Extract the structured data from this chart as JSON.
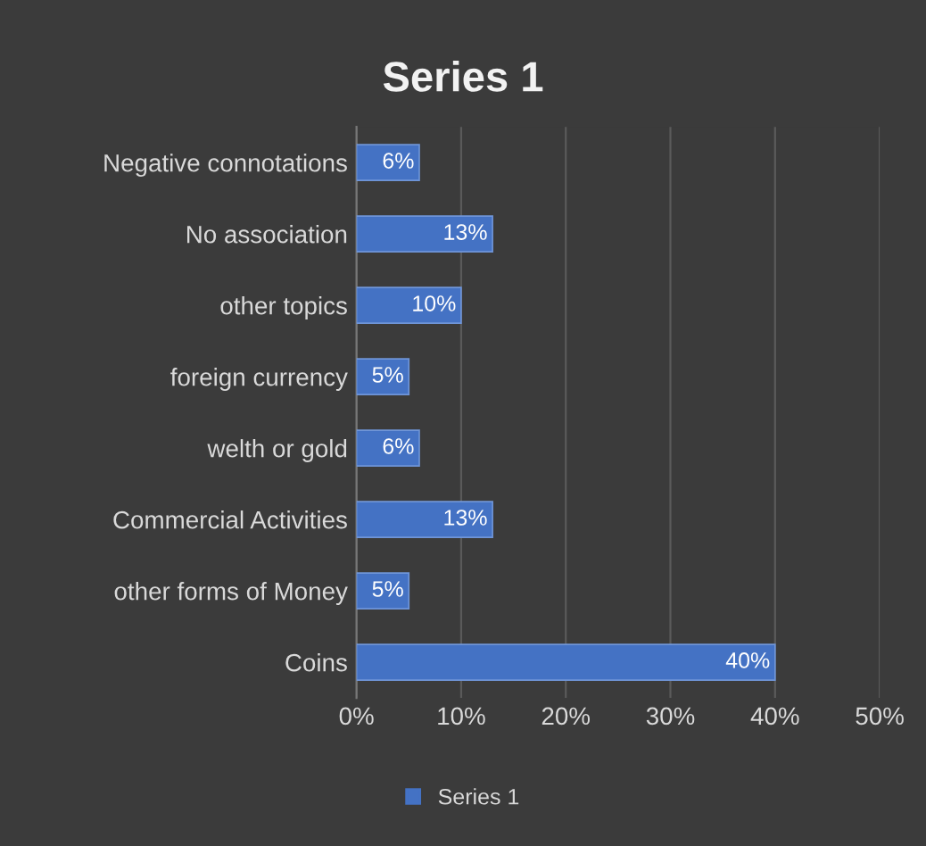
{
  "chart_data": {
    "type": "bar",
    "orientation": "horizontal",
    "title": "Series 1",
    "categories": [
      "Negative connotations",
      "No association",
      "other topics",
      "foreign currency",
      "welth or gold",
      "Commercial Activities",
      "other forms of Money",
      "Coins"
    ],
    "series": [
      {
        "name": "Series 1",
        "color": "#4472c4",
        "values": [
          6,
          13,
          10,
          5,
          6,
          13,
          5,
          40
        ],
        "value_labels": [
          "6%",
          "13%",
          "10%",
          "5%",
          "6%",
          "13%",
          "5%",
          "40%"
        ]
      }
    ],
    "xlim": [
      0,
      50
    ],
    "xticks": [
      {
        "value": 0,
        "label": "0%"
      },
      {
        "value": 10,
        "label": "10%"
      },
      {
        "value": 20,
        "label": "20%"
      },
      {
        "value": 30,
        "label": "30%"
      },
      {
        "value": 40,
        "label": "40%"
      },
      {
        "value": 50,
        "label": "50%"
      }
    ],
    "grid": "x",
    "legend": "bottom"
  }
}
